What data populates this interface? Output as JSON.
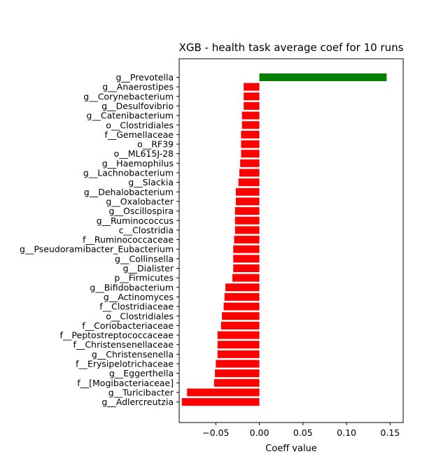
{
  "chart_data": {
    "type": "bar",
    "orientation": "horizontal",
    "title": "XGB - health task average coef for 10 runs",
    "xlabel": "Coeff value",
    "ylabel": "",
    "xlim": [
      -0.092,
      0.165
    ],
    "xticks": [
      -0.05,
      0.0,
      0.05,
      0.1,
      0.15
    ],
    "xtick_labels": [
      "−0.05",
      "0.00",
      "0.05",
      "0.10",
      "0.15"
    ],
    "grid": false,
    "colors": {
      "positive": "#008000",
      "negative": "#ff0000"
    },
    "categories": [
      "g__Prevotella",
      "g__Anaerostipes",
      "g__Corynebacterium",
      "g__Desulfovibrio",
      "g__Catenibacterium",
      "o__Clostridiales",
      "f__Gemellaceae",
      "o__RF39",
      "o__ML615J-28",
      "g__Haemophilus",
      "g__Lachnobacterium",
      "g__Slackia",
      "g__Dehalobacterium",
      "g__Oxalobacter",
      "g__Oscillospira",
      "g__Ruminococcus",
      "c__Clostridia",
      "f__Ruminococcaceae",
      "g__Pseudoramibacter_Eubacterium",
      "g__Collinsella",
      "g__Dialister",
      "p__Firmicutes",
      "g__Bifidobacterium",
      "g__Actinomyces",
      "f__Clostridiaceae",
      "o__Clostridiales",
      "f__Coriobacteriaceae",
      "f__Peptostreptococcaceae",
      "f__Christensenellaceae",
      "g__Christensenella",
      "f__Erysipelotrichaceae",
      "g__Eggerthella",
      "f__[Mogibacteriaceae]",
      "g__Turicibacter",
      "g__Adlercreutzia"
    ],
    "values": [
      0.146,
      -0.018,
      -0.018,
      -0.018,
      -0.02,
      -0.02,
      -0.021,
      -0.021,
      -0.021,
      -0.022,
      -0.023,
      -0.024,
      -0.027,
      -0.027,
      -0.028,
      -0.028,
      -0.028,
      -0.029,
      -0.03,
      -0.03,
      -0.03,
      -0.031,
      -0.039,
      -0.04,
      -0.041,
      -0.043,
      -0.044,
      -0.048,
      -0.048,
      -0.048,
      -0.05,
      -0.051,
      -0.052,
      -0.083,
      -0.089
    ]
  }
}
